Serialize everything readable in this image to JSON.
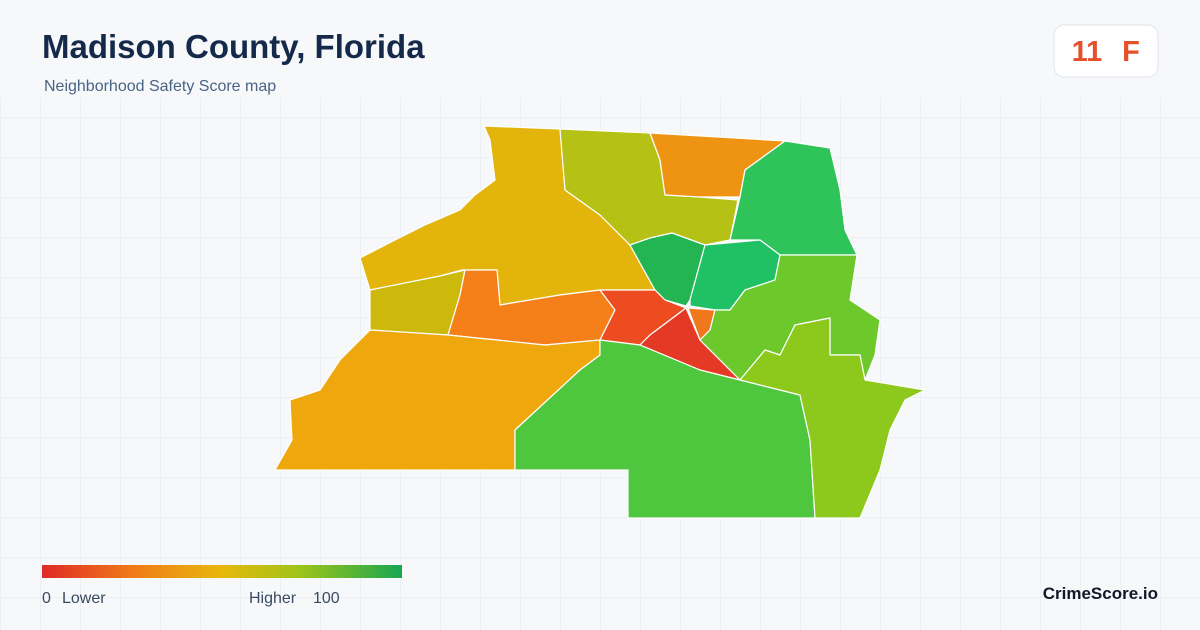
{
  "header": {
    "title": "Madison County, Florida",
    "subtitle": "Neighborhood Safety Score map"
  },
  "score": {
    "value": "11",
    "grade": "F"
  },
  "legend": {
    "min": "0",
    "min_label": "Lower",
    "max_label": "Higher",
    "max": "100"
  },
  "brand": "CrimeScore.io"
}
